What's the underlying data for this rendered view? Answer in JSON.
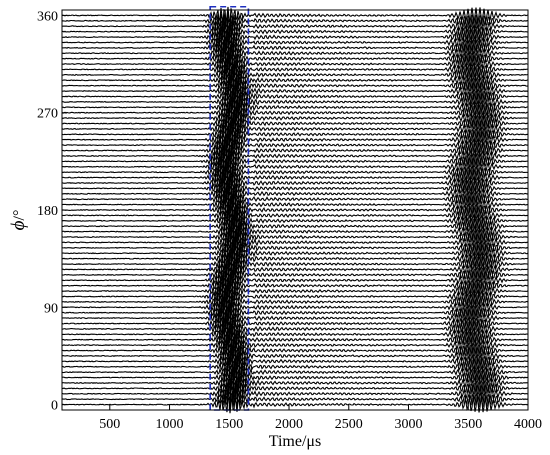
{
  "chart_data": {
    "type": "line",
    "title": "",
    "xlabel": "Time/μs",
    "ylabel_symbol": "ϕ",
    "ylabel_unit": "/°",
    "xlim": [
      100,
      4000
    ],
    "ylim": [
      -5,
      365
    ],
    "x_ticks": [
      500,
      1000,
      1500,
      2000,
      2500,
      3000,
      3500,
      4000
    ],
    "y_ticks": [
      0,
      90,
      180,
      270,
      360
    ],
    "grid": false,
    "legend": "none",
    "trace_color": "#000000",
    "highlight_color": "#1f2fbf",
    "series_description_note": "",
    "traces": {
      "count": 73,
      "phi_start": 0,
      "phi_step": 5,
      "t_start": 100,
      "t_end": 4000
    },
    "wave_packets": [
      {
        "t_center": 1510,
        "t_width": 120,
        "amplitude": 9,
        "freq_per_us": 0.035
      },
      {
        "t_center": 3560,
        "t_width": 160,
        "amplitude": 8,
        "freq_per_us": 0.03
      }
    ],
    "highlight_region": {
      "style": "dashed-box",
      "t_min": 1340,
      "t_max": 1660,
      "phi_min": -5,
      "phi_max": 368
    }
  }
}
